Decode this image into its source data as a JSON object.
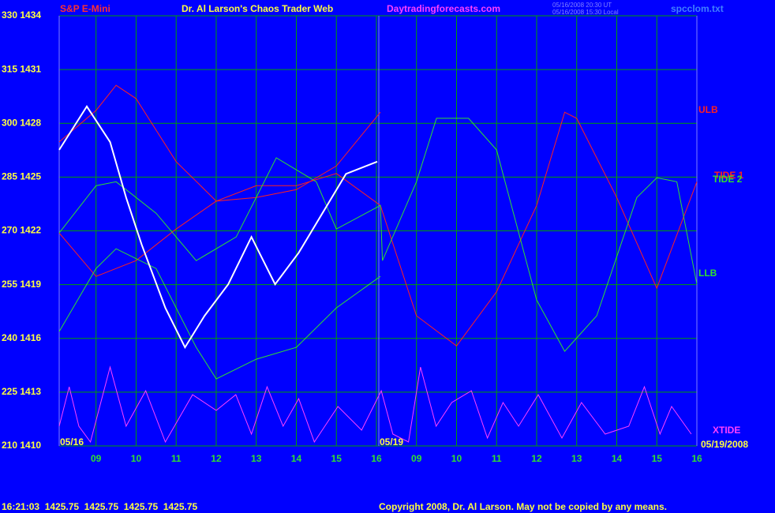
{
  "chart_data": {
    "type": "line",
    "title": "Dr. Al Larson's Chaos Trader Web",
    "symbol": "S&P E-Mini",
    "site": "Daytradingforecasts.com",
    "timestamp_ut": "05/16/2008 20:30 UT",
    "timestamp_local": "05/16/2008 15:30 Local",
    "file": "spcclom.txt",
    "date_labels": [
      "05/16",
      "05/19",
      "05/19/2008"
    ],
    "quote": "16:21:03  1425.75  1425.75  1425.75  1425.75",
    "copyright": "Copyright 2008, Dr. Al Larson. May not be copied by any means.",
    "grid": true,
    "xlim": [
      8.08,
      24.0
    ],
    "xticks": [
      {
        "value": 9,
        "label": "09"
      },
      10,
      11,
      12,
      13,
      14,
      15,
      16,
      {
        "value": 17,
        "label": "09"
      },
      {
        "value": 18,
        "label": "10"
      },
      {
        "value": 19,
        "label": "11"
      },
      {
        "value": 20,
        "label": "12"
      },
      {
        "value": 21,
        "label": "13"
      },
      {
        "value": 22,
        "label": "14"
      },
      {
        "value": 23,
        "label": "15"
      },
      {
        "value": 24,
        "label": "16"
      }
    ],
    "ylim": [
      210,
      330
    ],
    "yticks": [
      {
        "value": 210,
        "label": "210 1410"
      },
      {
        "value": 225,
        "label": "225 1413"
      },
      {
        "value": 240,
        "label": "240 1416"
      },
      {
        "value": 255,
        "label": "255 1419"
      },
      {
        "value": 270,
        "label": "270 1422"
      },
      {
        "value": 285,
        "label": "285 1425"
      },
      {
        "value": 300,
        "label": "300 1428"
      },
      {
        "value": 315,
        "label": "315 1431"
      },
      {
        "value": 330,
        "label": "330 1434"
      }
    ],
    "series": [
      {
        "name": "ULB",
        "color": "#ff2020",
        "x": [
          8.08,
          9,
          9.5,
          10,
          11,
          12,
          13,
          14,
          15,
          16.1
        ],
        "values": [
          294.8,
          303.6,
          310.6,
          306.9,
          289.3,
          278.3,
          279.3,
          281.5,
          288.1,
          303.1
        ]
      },
      {
        "name": "TIDE 1",
        "color": "#ff2020",
        "x": [
          8.08,
          9,
          10,
          11,
          12,
          13,
          14,
          15,
          16.1,
          17,
          18,
          19,
          20,
          20.7,
          21,
          22,
          23,
          24
        ],
        "values": [
          269.4,
          257.3,
          261.7,
          270.5,
          278.3,
          282.6,
          282.6,
          286,
          277.1,
          246.3,
          237.9,
          253,
          277.1,
          303.1,
          301.4,
          279.3,
          254,
          283.7
        ]
      },
      {
        "name": "TIDE 2",
        "color": "#30e030",
        "x": [
          8.08,
          9,
          9.5,
          10.5,
          11.5,
          12.5,
          13.5,
          14.5,
          15,
          16.1,
          16.15,
          17,
          17.5,
          18.3,
          19,
          20,
          20.7,
          21.5,
          22.5,
          23,
          23.5,
          24
        ],
        "values": [
          269.4,
          282.6,
          283.7,
          274.9,
          261.7,
          268.3,
          290.4,
          283.7,
          270.5,
          277.1,
          261.7,
          283.7,
          301.4,
          301.4,
          292.6,
          250.7,
          236.4,
          246.3,
          279.3,
          284.8,
          283.7,
          255.1
        ]
      },
      {
        "name": "LLB",
        "color": "#30e030",
        "x": [
          8.08,
          9,
          9.5,
          10.5,
          11.5,
          12,
          13,
          14,
          15,
          16.1
        ],
        "values": [
          241.9,
          259.5,
          265,
          259.5,
          237.5,
          228.7,
          234.2,
          237.5,
          248.5,
          257.3
        ]
      },
      {
        "name": "XTIDE",
        "color": "#ff40ff",
        "x": [
          8.08,
          8.33,
          8.57,
          8.86,
          9.35,
          9.75,
          10.24,
          10.73,
          11.41,
          12,
          12.49,
          12.88,
          13.27,
          13.67,
          14.06,
          14.45,
          15.04,
          15.63,
          16.12,
          16.41,
          16.8,
          17.1,
          17.49,
          17.88,
          18.37,
          18.77,
          19.16,
          19.55,
          20.04,
          20.63,
          21.12,
          21.71,
          22.3,
          22.69,
          23.08,
          23.37,
          23.86
        ],
        "values": [
          215.5,
          226.5,
          215.5,
          211.1,
          232,
          215.5,
          225.4,
          211.1,
          224.3,
          219.9,
          224.3,
          213.3,
          226.5,
          215.5,
          223.2,
          211.1,
          221,
          214.4,
          225.4,
          213.3,
          211.1,
          232,
          215.5,
          222.1,
          225.4,
          212.2,
          222.1,
          215.5,
          224.3,
          212.2,
          222.1,
          213.3,
          215.5,
          226.5,
          213.3,
          221,
          213.3
        ]
      },
      {
        "color": "#ffffff",
        "x": [
          8.08,
          8.77,
          9.35,
          9.75,
          10.14,
          10.73,
          11.22,
          11.71,
          12.3,
          12.88,
          13.47,
          14.06,
          14.65,
          15.24,
          16.02
        ],
        "values": [
          292.6,
          304.7,
          294.8,
          279.3,
          266.1,
          248.5,
          237.5,
          246.3,
          255.1,
          268.3,
          255.1,
          263.9,
          274.9,
          285.9,
          289.3
        ]
      }
    ]
  }
}
